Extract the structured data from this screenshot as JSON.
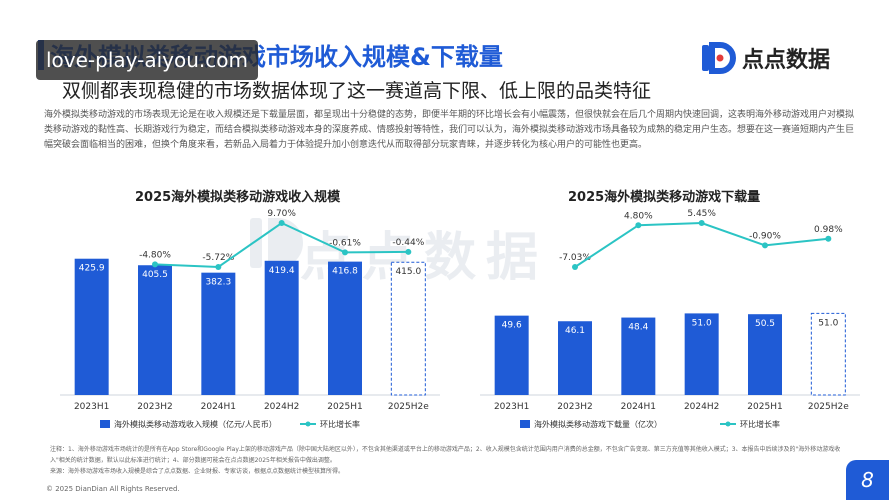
{
  "header": {
    "title": "海外模拟类移动游戏市场收入规模&下载量",
    "subtitle": "双侧都表现稳健的市场数据体现了这一赛道高下限、低上限的品类特征",
    "watermark": "love-play-aiyou.com"
  },
  "logo": {
    "text": "点点数据"
  },
  "description": "海外模拟类移动游戏的市场表现无论是在收入规模还是下载量层面，都呈现出十分稳健的态势，即便半年期的环比增长会有小幅震荡，但很快就会在后几个周期内快速回调，这表明海外移动游戏用户对模拟类移动游戏的黏性高、长期游戏行为稳定，而结合模拟类移动游戏本身的深度养成、情感投射等特性，我们可以认为，海外模拟类移动游戏市场具备较为成熟的稳定用户生态。想要在这一赛道短期内产生巨幅突破会面临相当的困难，但换个角度来看，若新品入局着力于体验提升加小创意迭代从而取得部分玩家青睐，并逐步转化为核心用户的可能性也更高。",
  "big_watermark": "点点数据",
  "chart_data": [
    {
      "type": "bar",
      "title": "2025海外模拟类移动游戏收入规模",
      "categories": [
        "2023H1",
        "2023H2",
        "2024H1",
        "2024H2",
        "2025H1",
        "2025H2e"
      ],
      "series": [
        {
          "name": "海外模拟类移动游戏收入规模（亿元/人民币）",
          "values": [
            425.9,
            405.5,
            382.3,
            419.4,
            416.8,
            415.0
          ],
          "value_labels": [
            "425.9",
            "405.5",
            "382.3",
            "419.4",
            "416.8",
            "415.0"
          ],
          "type": "bar",
          "color": "#1f5bd6"
        },
        {
          "name": "环比增长率",
          "values": [
            null,
            -4.8,
            -5.72,
            9.7,
            -0.61,
            -0.44
          ],
          "value_labels": [
            "",
            "-4.80%",
            "-5.72%",
            "9.70%",
            "-0.61%",
            "-0.44%"
          ],
          "type": "line",
          "color": "#2bc4c4"
        }
      ],
      "estimate_last": true,
      "ylim": [
        0,
        500
      ]
    },
    {
      "type": "bar",
      "title": "2025海外模拟类移动游戏下载量",
      "categories": [
        "2023H1",
        "2023H2",
        "2024H1",
        "2024H2",
        "2025H1",
        "2025H2e"
      ],
      "series": [
        {
          "name": "海外模拟类移动游戏下载量（亿次）",
          "values": [
            49.6,
            46.1,
            48.4,
            51.0,
            50.5,
            51.0
          ],
          "value_labels": [
            "49.6",
            "46.1",
            "48.4",
            "51.0",
            "50.5",
            "51.0"
          ],
          "type": "bar",
          "color": "#1f5bd6"
        },
        {
          "name": "环比增长率",
          "values": [
            null,
            -7.03,
            4.8,
            5.45,
            -0.9,
            0.98
          ],
          "value_labels": [
            "",
            "-7.03%",
            "4.80%",
            "5.45%",
            "-0.90%",
            "0.98%"
          ],
          "type": "line",
          "color": "#2bc4c4"
        }
      ],
      "estimate_last": true,
      "ylim": [
        0,
        100
      ]
    }
  ],
  "footnote": [
    "注释：1、海外移动游戏市场统计的是所有在App Store和Google Play上架的移动游戏产品（除中国大陆地区以外），不包含其他渠道或平台上的移动游戏产品；2、收入规模包含统计范围内用户消费的总金额，不包含广告变现、第三方充值等其他收入模式；3、本报告中后续涉及的\"海外移动游戏收入\"相关的统计数据，默认以此标准进行统计；4、部分数据可能会在点点数据2025年相关报告中做出调整。",
    "来源：海外移动游戏市场收入规模是综合了点点数据、企业财报、专家访谈，根据点点数据统计模型核算所得。"
  ],
  "copyright": "© 2025 DianDian All Rights Reserved.",
  "page_number": "8"
}
